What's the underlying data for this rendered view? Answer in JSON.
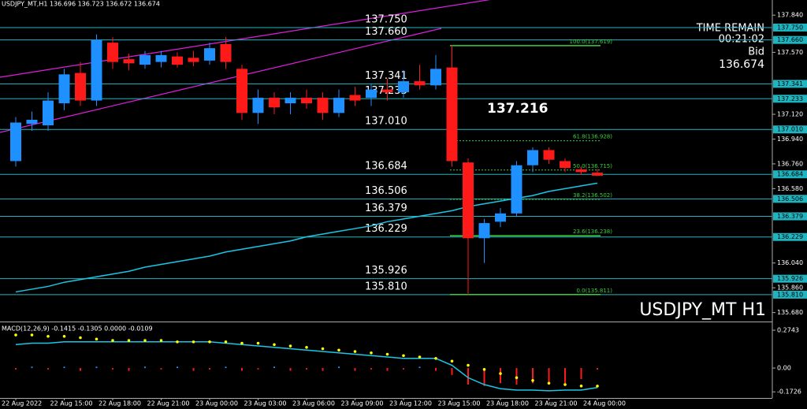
{
  "chart_data": {
    "type": "candlestick",
    "title": "USDJPY_MT,H1 136.696 136.723 136.672 136.674",
    "watermark": "USDJPY_MT H1",
    "info": [
      "TIME REMAIN",
      "00:21:02",
      "Bid",
      "136.674"
    ],
    "annotation": 137.216,
    "categories": [
      "22 Aug 2022",
      null,
      null,
      "22 Aug 15:00",
      null,
      null,
      "22 Aug 18:00",
      null,
      null,
      "22 Aug 21:00",
      null,
      null,
      "23 Aug 00:00",
      null,
      null,
      "23 Aug 03:00",
      null,
      null,
      "23 Aug 06:00",
      null,
      null,
      "23 Aug 09:00",
      null,
      null,
      "23 Aug 12:00",
      null,
      null,
      "23 Aug 15:00",
      null,
      null,
      "23 Aug 18:00",
      null,
      null,
      "23 Aug 21:00",
      null,
      null,
      "24 Aug 00:00"
    ],
    "open": [
      136.78,
      137.05,
      137.04,
      137.2,
      137.42,
      137.22,
      137.64,
      137.52,
      137.48,
      137.5,
      137.54,
      137.53,
      137.51,
      137.63,
      137.45,
      137.13,
      137.24,
      137.2,
      137.24,
      137.24,
      137.13,
      137.26,
      137.24,
      137.3,
      137.28,
      137.36,
      137.33,
      137.46,
      136.77,
      136.22,
      136.34,
      136.4,
      136.75,
      136.86,
      136.78,
      136.72,
      136.696
    ],
    "high": [
      137.1,
      137.14,
      137.28,
      137.45,
      137.5,
      137.7,
      137.68,
      137.56,
      137.58,
      137.58,
      137.57,
      137.58,
      137.64,
      137.68,
      137.48,
      137.3,
      137.28,
      137.28,
      137.3,
      137.28,
      137.3,
      137.32,
      137.34,
      137.38,
      137.44,
      137.48,
      137.55,
      137.62,
      136.8,
      136.36,
      136.44,
      136.78,
      136.88,
      136.88,
      136.8,
      136.74,
      136.723
    ],
    "low": [
      136.74,
      137.0,
      137.0,
      137.15,
      137.18,
      137.18,
      137.45,
      137.44,
      137.45,
      137.46,
      137.46,
      137.47,
      137.48,
      137.45,
      137.08,
      137.05,
      137.12,
      137.12,
      137.16,
      137.08,
      137.1,
      137.18,
      137.18,
      137.22,
      137.24,
      137.3,
      137.3,
      136.74,
      135.81,
      136.04,
      136.3,
      136.38,
      136.7,
      136.76,
      136.7,
      136.68,
      136.672
    ],
    "close": [
      137.06,
      137.08,
      137.22,
      137.41,
      137.22,
      137.66,
      137.5,
      137.49,
      137.55,
      137.55,
      137.48,
      137.5,
      137.6,
      137.5,
      137.13,
      137.24,
      137.17,
      137.24,
      137.2,
      137.13,
      137.24,
      137.22,
      137.3,
      137.28,
      137.36,
      137.33,
      137.45,
      136.78,
      136.22,
      136.33,
      136.4,
      136.75,
      136.86,
      136.79,
      136.73,
      136.7,
      136.674
    ],
    "up_color": "#1e90ff",
    "down_color": "#ff1a1a",
    "ma": {
      "color": "#19c6e6",
      "values": [
        135.83,
        135.85,
        135.87,
        135.9,
        135.92,
        135.94,
        135.96,
        135.98,
        136.01,
        136.03,
        136.05,
        136.07,
        136.09,
        136.12,
        136.14,
        136.16,
        136.18,
        136.2,
        136.23,
        136.25,
        136.27,
        136.29,
        136.31,
        136.34,
        136.36,
        136.38,
        136.4,
        136.42,
        136.45,
        136.47,
        136.49,
        136.51,
        136.53,
        136.56,
        136.58,
        136.6,
        136.62
      ]
    },
    "ylim": [
      135.615,
      137.95
    ],
    "yticks": [
      {
        "value": 137.84,
        "label": "137.840"
      },
      {
        "value": 137.57,
        "label": "137.570"
      },
      {
        "value": 137.12,
        "label": "137.120"
      },
      {
        "value": 136.94,
        "label": "136.940"
      },
      {
        "value": 136.76,
        "label": "136.760"
      },
      {
        "value": 136.58,
        "label": "136.580"
      },
      {
        "value": 136.04,
        "label": "136.040"
      },
      {
        "value": 135.86,
        "label": "135.860"
      },
      {
        "value": 135.68,
        "label": "135.680"
      }
    ],
    "levels": [
      {
        "value": 137.75,
        "label": "137.750"
      },
      {
        "value": 137.66,
        "label": "137.660"
      },
      137.341,
      137.233,
      {
        "value": 137.01,
        "label": "137.010"
      },
      136.684,
      136.506,
      136.379,
      136.229,
      135.926,
      {
        "value": 135.81,
        "label": "135.810"
      }
    ],
    "level_color": "#1fb5c0",
    "fib": [
      {
        "label": "100.0(137.619)",
        "value": 137.619
      },
      {
        "label": "61.8(136.928)",
        "value": 136.928
      },
      {
        "label": "50.0(136.715)",
        "value": 136.715
      },
      {
        "label": "38.2(136.502)",
        "value": 136.502
      },
      {
        "label": "23.6(136.238)",
        "value": 136.238
      },
      {
        "label": "0.0(135.811)",
        "value": 135.811
      }
    ],
    "fib_color": "#3ccf3c",
    "macd": {
      "label": "MACD(12,26,9) -0.1415 -0.1305 0.0000 -0.0109",
      "ylim": [
        -0.217,
        0.326
      ],
      "yticks": [
        0.2743,
        {
          "value": 0,
          "label": "0.00"
        },
        -0.1726
      ],
      "main": [
        0.17,
        0.18,
        0.18,
        0.19,
        0.19,
        0.19,
        0.19,
        0.19,
        0.19,
        0.19,
        0.19,
        0.19,
        0.19,
        0.18,
        0.17,
        0.16,
        0.15,
        0.14,
        0.13,
        0.12,
        0.11,
        0.1,
        0.09,
        0.08,
        0.07,
        0.07,
        0.07,
        0.02,
        -0.07,
        -0.12,
        -0.15,
        -0.16,
        -0.16,
        -0.165,
        -0.16,
        -0.16,
        -0.1415
      ],
      "signal": [
        0.24,
        0.24,
        0.23,
        0.23,
        0.22,
        0.21,
        0.2,
        0.2,
        0.2,
        0.2,
        0.19,
        0.19,
        0.19,
        0.19,
        0.18,
        0.18,
        0.17,
        0.16,
        0.15,
        0.14,
        0.13,
        0.12,
        0.11,
        0.1,
        0.09,
        0.08,
        0.07,
        0.05,
        0.02,
        -0.01,
        -0.04,
        -0.07,
        -0.09,
        -0.11,
        -0.12,
        -0.13,
        -0.1305
      ],
      "histogram": [
        -0.01,
        0.01,
        -0.01,
        0.01,
        -0.02,
        0.01,
        -0.01,
        -0.02,
        0.01,
        -0.01,
        0.01,
        -0.02,
        -0.01,
        0.01,
        -0.02,
        -0.01,
        0.01,
        -0.02,
        -0.01,
        -0.02,
        0.01,
        -0.02,
        -0.01,
        -0.02,
        -0.01,
        0.01,
        -0.02,
        -0.05,
        -0.12,
        -0.13,
        -0.11,
        -0.12,
        -0.11,
        -0.1,
        -0.11,
        -0.08,
        -0.0109
      ],
      "main_color": "#19c6e6",
      "signal_color": "#ffff00"
    }
  }
}
